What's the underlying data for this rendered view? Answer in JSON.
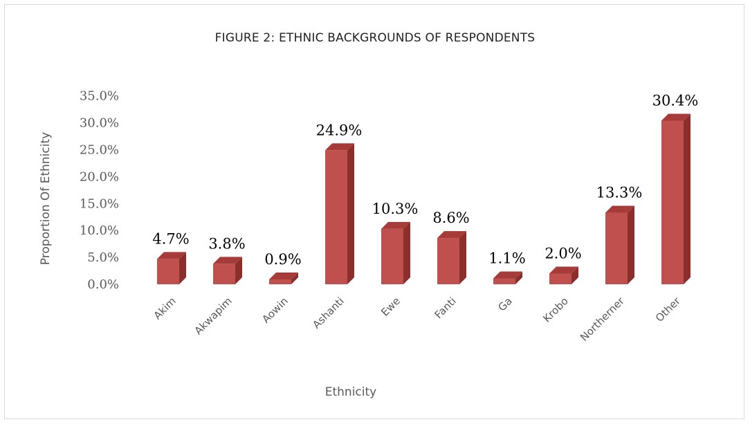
{
  "chart_data": {
    "type": "bar",
    "title": "FIGURE 2: ETHNIC BACKGROUNDS OF RESPONDENTS",
    "xlabel": "Ethnicity",
    "ylabel": "Proportion Of Ethnicity",
    "categories": [
      "Akim",
      "Akwapim",
      "Aowin",
      "Ashanti",
      "Ewe",
      "Fanti",
      "Ga",
      "Krobo",
      "Northerner",
      "Other"
    ],
    "values": [
      4.7,
      3.8,
      0.9,
      24.9,
      10.3,
      8.6,
      1.1,
      2.0,
      13.3,
      30.4
    ],
    "value_labels": [
      "4.7%",
      "3.8%",
      "0.9%",
      "24.9%",
      "10.3%",
      "8.6%",
      "1.1%",
      "2.0%",
      "13.3%",
      "30.4%"
    ],
    "ylim": [
      0,
      35
    ],
    "yticks": [
      "0.0%",
      "5.0%",
      "10.0%",
      "15.0%",
      "20.0%",
      "25.0%",
      "30.0%",
      "35.0%"
    ],
    "grid": false,
    "legend": "none",
    "colors": {
      "bar_front": "#c0504d",
      "bar_side": "#8b2f2c",
      "bar_top": "#a63c39"
    }
  }
}
